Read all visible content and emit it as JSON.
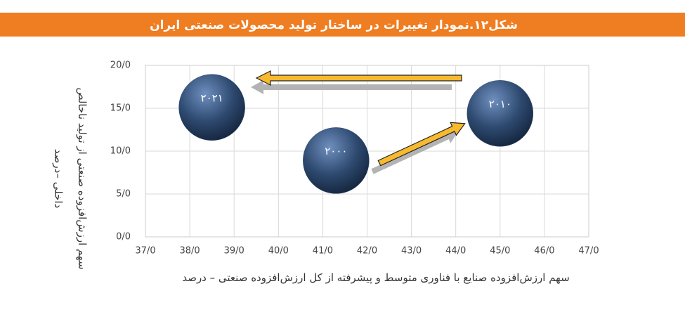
{
  "chart_data": {
    "type": "scatter",
    "title": "شکل۱۲.نمودار تغییرات در ساختار تولید محصولات صنعتی ایران",
    "x_label": "سهم ارزش‌افزوده صنایع با فناوری متوسط و پیشرفته از کل ارزش‌افزوده صنعتی – درصد",
    "y_label": "سهم ارزش‌افزوده صنعتی از تولید ناخالص داخلی –درصد",
    "labels": [
      "۲۰۰۰",
      "۲۰۱۰",
      "۲۰۲۱"
    ],
    "x": [
      41.3,
      45.0,
      38.5
    ],
    "values": [
      8.9,
      14.4,
      15.1
    ],
    "color": "#2e4a70",
    "grid": true,
    "xlim": [
      37,
      47
    ],
    "xticks": [
      {
        "value": 37,
        "label": "37/0"
      },
      {
        "value": 38,
        "label": "38/0"
      },
      {
        "value": 39,
        "label": "39/0"
      },
      {
        "value": 40,
        "label": "40/0"
      },
      {
        "value": 41,
        "label": "41/0"
      },
      {
        "value": 42,
        "label": "42/0"
      },
      {
        "value": 43,
        "label": "43/0"
      },
      {
        "value": 44,
        "label": "44/0"
      },
      {
        "value": 45,
        "label": "45/0"
      },
      {
        "value": 46,
        "label": "46/0"
      },
      {
        "value": 47,
        "label": "47/0"
      }
    ],
    "ylim": [
      0,
      20
    ],
    "yticks": [
      {
        "value": 0,
        "label": "0/0"
      },
      {
        "value": 5,
        "label": "5/0"
      },
      {
        "value": 10,
        "label": "10/0"
      },
      {
        "value": 15,
        "label": "15/0"
      },
      {
        "value": 20,
        "label": "20/0"
      }
    ]
  }
}
